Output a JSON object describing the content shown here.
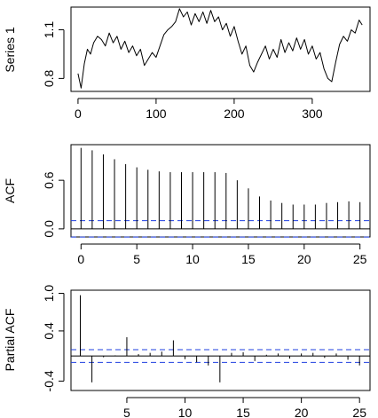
{
  "chart_data": [
    {
      "type": "line",
      "ylabel": "Series 1",
      "xlim": [
        -9,
        374
      ],
      "ylim": [
        0.72,
        1.24
      ],
      "xticks": [
        0,
        100,
        200,
        300
      ],
      "xtick_labels": [
        "0",
        "100",
        "200",
        "300"
      ],
      "yticks": [
        0.8,
        1.1
      ],
      "ytick_labels": [
        "0.8",
        "1.1"
      ],
      "x": [
        0,
        4,
        8,
        12,
        16,
        20,
        25,
        30,
        35,
        40,
        45,
        50,
        55,
        60,
        65,
        70,
        75,
        80,
        85,
        90,
        95,
        100,
        105,
        110,
        115,
        120,
        125,
        130,
        135,
        140,
        145,
        150,
        155,
        160,
        165,
        170,
        175,
        180,
        185,
        190,
        195,
        200,
        205,
        210,
        215,
        220,
        225,
        230,
        235,
        240,
        245,
        250,
        255,
        260,
        265,
        270,
        275,
        280,
        285,
        290,
        295,
        300,
        305,
        310,
        315,
        320,
        325,
        330,
        335,
        340,
        345,
        350,
        355,
        360,
        364
      ],
      "values": [
        0.83,
        0.74,
        0.89,
        0.98,
        0.95,
        1.02,
        1.06,
        1.04,
        1.0,
        1.08,
        1.02,
        1.06,
        0.98,
        1.03,
        0.96,
        1.0,
        0.94,
        0.98,
        0.88,
        0.92,
        0.96,
        0.93,
        1.0,
        1.07,
        1.1,
        1.12,
        1.15,
        1.23,
        1.18,
        1.21,
        1.13,
        1.2,
        1.15,
        1.21,
        1.14,
        1.22,
        1.15,
        1.18,
        1.1,
        1.14,
        1.06,
        1.12,
        1.03,
        0.95,
        1.0,
        0.88,
        0.84,
        0.9,
        0.95,
        1.0,
        0.92,
        0.98,
        0.93,
        1.04,
        0.96,
        1.02,
        0.97,
        1.05,
        0.98,
        1.04,
        0.95,
        1.0,
        0.92,
        0.96,
        0.86,
        0.8,
        0.78,
        0.9,
        1.01,
        1.06,
        1.03,
        1.1,
        1.08,
        1.16,
        1.13
      ]
    },
    {
      "type": "bar",
      "ylabel": "ACF",
      "xlim": [
        -0.9,
        25.9
      ],
      "ylim": [
        -0.1,
        1.04
      ],
      "xticks": [
        0,
        5,
        10,
        15,
        20,
        25
      ],
      "xtick_labels": [
        "0",
        "5",
        "10",
        "15",
        "20",
        "25"
      ],
      "yticks": [
        0.0,
        0.6
      ],
      "ytick_labels": [
        "0.0",
        "0.6"
      ],
      "lags": [
        0,
        1,
        2,
        3,
        4,
        5,
        6,
        7,
        8,
        9,
        10,
        11,
        12,
        13,
        14,
        15,
        16,
        17,
        18,
        19,
        20,
        21,
        22,
        23,
        24,
        25
      ],
      "values": [
        1.0,
        0.97,
        0.92,
        0.86,
        0.8,
        0.76,
        0.73,
        0.71,
        0.7,
        0.7,
        0.7,
        0.7,
        0.7,
        0.69,
        0.6,
        0.5,
        0.4,
        0.35,
        0.32,
        0.3,
        0.3,
        0.3,
        0.32,
        0.33,
        0.34,
        0.33
      ],
      "conf_band": [
        -0.102,
        0.102
      ]
    },
    {
      "type": "bar",
      "ylabel": "Partial ACF",
      "xlim": [
        0.2,
        25.9
      ],
      "ylim": [
        -0.55,
        1.05
      ],
      "xticks": [
        5,
        10,
        15,
        20,
        25
      ],
      "xtick_labels": [
        "5",
        "10",
        "15",
        "20",
        "25"
      ],
      "yticks": [
        -0.4,
        0.4,
        1.0
      ],
      "ytick_labels": [
        "-0.4",
        "0.4",
        "1.0"
      ],
      "lags": [
        1,
        2,
        3,
        4,
        5,
        6,
        7,
        8,
        9,
        10,
        11,
        12,
        13,
        14,
        15,
        16,
        17,
        18,
        19,
        20,
        21,
        22,
        23,
        24,
        25
      ],
      "values": [
        0.97,
        -0.42,
        -0.02,
        0.01,
        0.3,
        0.03,
        0.05,
        0.07,
        0.25,
        -0.05,
        -0.1,
        -0.15,
        -0.42,
        0.05,
        0.06,
        -0.08,
        0.02,
        0.04,
        -0.04,
        0.04,
        0.05,
        -0.03,
        0.04,
        -0.06,
        -0.15
      ],
      "conf_band": [
        -0.102,
        0.102
      ]
    }
  ]
}
